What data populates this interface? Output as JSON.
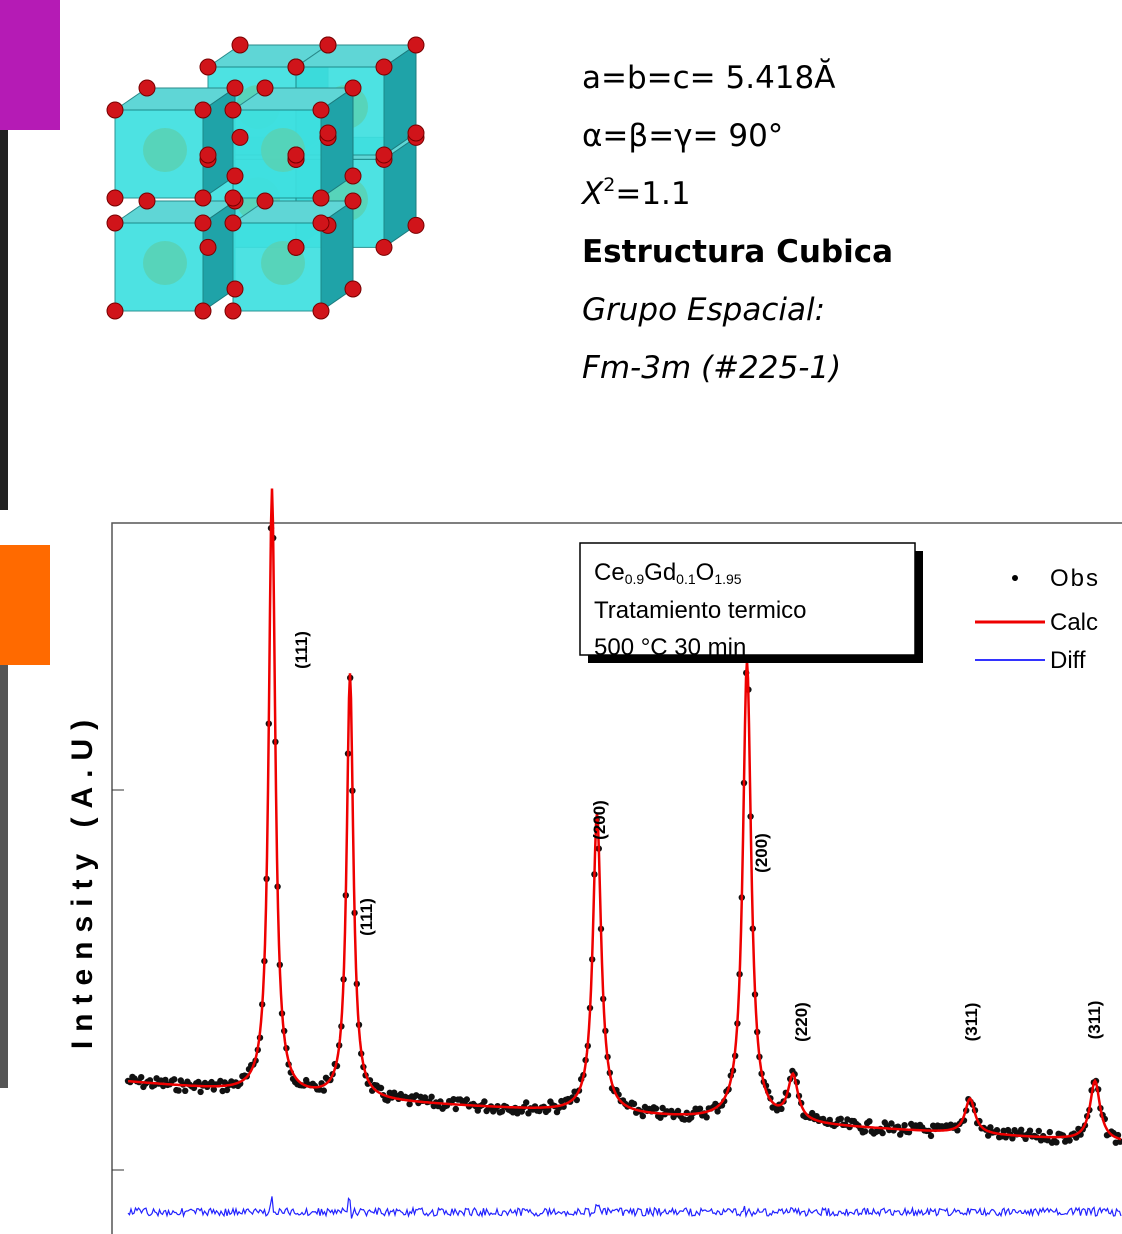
{
  "parameters": {
    "lattice": "a=b=c= 5.418Ă",
    "angles": "α=β=γ= 90°",
    "chi": {
      "symbol": "X",
      "exponent": "2",
      "value": "=1.1"
    },
    "structure": "Estructura Cubica",
    "space_group_label": "Grupo Espacial:",
    "space_group": "Fm-3m (#225-1)"
  },
  "plot": {
    "y_label": "Intensity (A.U)",
    "sample": [
      "Ce",
      "0.9",
      "Gd",
      "0.1",
      "O",
      "1.95"
    ],
    "treatment": "Tratamiento termico",
    "conditions": "500 °C 30 min",
    "legend": [
      "Obs",
      "Calc",
      "Diff"
    ],
    "peak_labels": [
      "(111)",
      "(111)",
      "(200)",
      "(200)",
      "(220)",
      "(311)",
      "(311)"
    ]
  }
}
